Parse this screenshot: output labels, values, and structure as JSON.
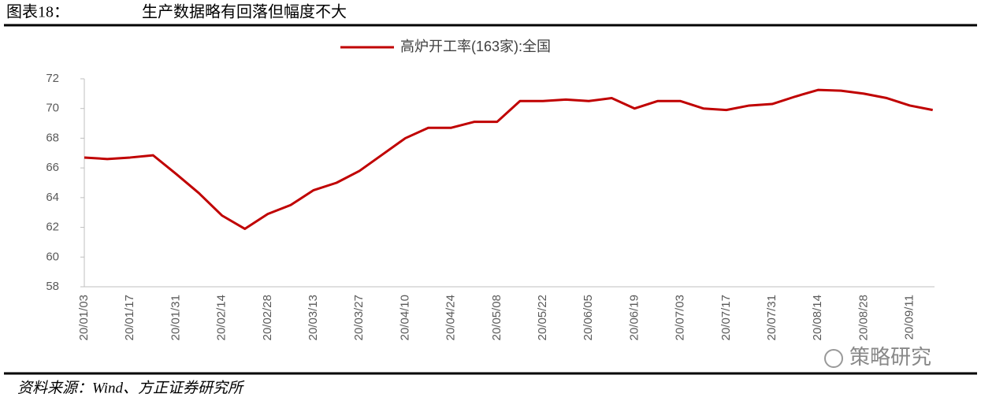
{
  "header": {
    "label": "图表18：",
    "title": "生产数据略有回落但幅度不大"
  },
  "chart_data": {
    "type": "line",
    "categories": [
      "20/01/03",
      null,
      "20/01/17",
      null,
      "20/01/31",
      null,
      "20/02/14",
      null,
      "20/02/28",
      null,
      "20/03/13",
      null,
      "20/03/27",
      null,
      "20/04/10",
      null,
      "20/04/24",
      null,
      "20/05/08",
      null,
      "20/05/22",
      null,
      "20/06/05",
      null,
      "20/06/19",
      null,
      "20/07/03",
      null,
      "20/07/17",
      null,
      "20/07/31",
      null,
      "20/08/14",
      null,
      "20/08/28",
      null,
      "20/09/11",
      null
    ],
    "series": [
      {
        "name": "高炉开工率(163家):全国",
        "color": "#c00000",
        "values": [
          66.7,
          66.6,
          66.7,
          66.85,
          65.6,
          64.3,
          62.8,
          61.9,
          62.9,
          63.5,
          64.5,
          65.0,
          65.8,
          66.9,
          68.0,
          68.7,
          68.7,
          69.1,
          69.1,
          70.5,
          70.5,
          70.6,
          70.5,
          70.7,
          70.0,
          70.5,
          70.5,
          70.0,
          69.9,
          70.2,
          70.3,
          70.8,
          71.25,
          71.2,
          71.0,
          70.7,
          70.2,
          69.9
        ]
      }
    ],
    "ylim": [
      58,
      72
    ],
    "yticks": [
      58,
      60,
      62,
      64,
      66,
      68,
      70,
      72
    ],
    "legend": "top"
  },
  "watermark": "策略研究",
  "source": "资料来源：Wind、方正证券研究所"
}
